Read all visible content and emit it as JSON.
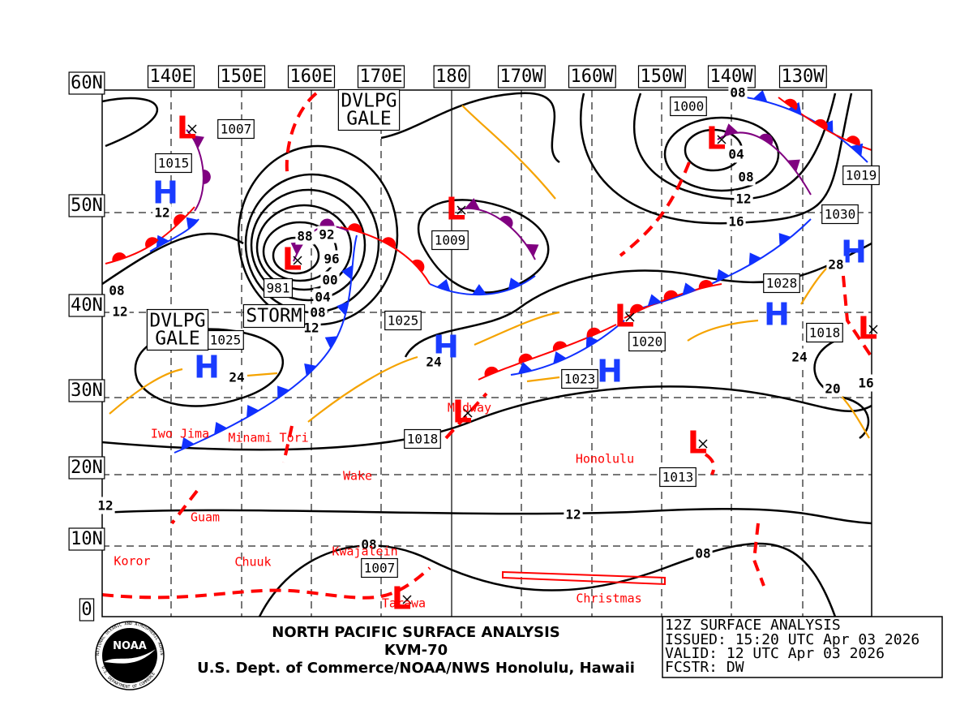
{
  "header": {
    "title": "NORTH PACIFIC SURFACE ANALYSIS",
    "station": "KVM-70",
    "office": "U.S. Dept. of Commerce/NOAA/NWS Honolulu, Hawaii"
  },
  "info_box": [
    "12Z SURFACE ANALYSIS",
    "ISSUED: 15:20 UTC Apr 03 2026",
    "VALID: 12 UTC Apr 03 2026",
    "FCSTR: DW"
  ],
  "logo": {
    "name": "NOAA",
    "ring": "NATIONAL OCEANIC AND ATMOSPHERIC ADMINISTRATION",
    "ring_bottom": "U.S. DEPARTMENT OF COMMERCE"
  },
  "longitude_labels": [
    "140E",
    "150E",
    "160E",
    "170E",
    "180",
    "170W",
    "160W",
    "150W",
    "140W",
    "130W"
  ],
  "latitude_labels": [
    "60N",
    "50N",
    "40N",
    "30N",
    "20N",
    "10N",
    "0"
  ],
  "warnings": [
    [
      "DVLPG",
      "GALE"
    ],
    [
      "DVLPG",
      "GALE"
    ],
    [
      "STORM"
    ]
  ],
  "centers": [
    "L",
    "L",
    "L",
    "L",
    "L",
    "L",
    "L",
    "L",
    "L",
    "H",
    "H",
    "H",
    "H",
    "H",
    "H"
  ],
  "pressure_labels": [
    "1007",
    "1009",
    "981",
    "1000",
    "1020",
    "1018",
    "1013",
    "1007",
    "1018",
    "1015",
    "1025",
    "1025",
    "1023",
    "1028",
    "1030",
    "1019"
  ],
  "isobar_labels": [
    "08",
    "04",
    "08",
    "12",
    "16",
    "28",
    "24",
    "20",
    "16",
    "88",
    "92",
    "96",
    "00",
    "04",
    "08",
    "12",
    "12",
    "08",
    "12",
    "24",
    "24",
    "12",
    "12",
    "08",
    "08"
  ],
  "place_names": [
    "Iwo Jima",
    "Minami Tori",
    "Wake",
    "Guam",
    "Koror",
    "Chuuk",
    "Kwajalein",
    "Tarawa",
    "Midway",
    "Honolulu",
    "Christmas"
  ]
}
